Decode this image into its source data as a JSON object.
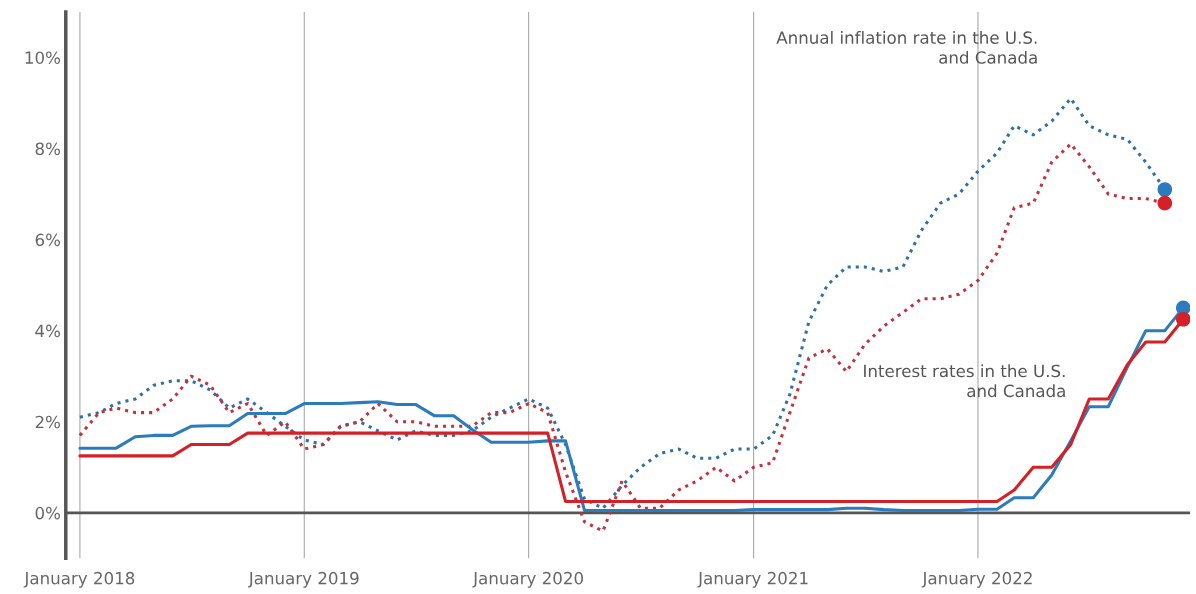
{
  "chart_data": {
    "type": "line",
    "annotations": [
      "Annual inflation rate in the U.S.\nand Canada",
      "Interest rates in the U.S.\nand Canada"
    ],
    "x": [
      "2018-01",
      "2018-02",
      "2018-03",
      "2018-04",
      "2018-05",
      "2018-06",
      "2018-07",
      "2018-08",
      "2018-09",
      "2018-10",
      "2018-11",
      "2018-12",
      "2019-01",
      "2019-02",
      "2019-03",
      "2019-04",
      "2019-05",
      "2019-06",
      "2019-07",
      "2019-08",
      "2019-09",
      "2019-10",
      "2019-11",
      "2019-12",
      "2020-01",
      "2020-02",
      "2020-03",
      "2020-04",
      "2020-05",
      "2020-06",
      "2020-07",
      "2020-08",
      "2020-09",
      "2020-10",
      "2020-11",
      "2020-12",
      "2021-01",
      "2021-02",
      "2021-03",
      "2021-04",
      "2021-05",
      "2021-06",
      "2021-07",
      "2021-08",
      "2021-09",
      "2021-10",
      "2021-11",
      "2021-12",
      "2022-01",
      "2022-02",
      "2022-03",
      "2022-04",
      "2022-05",
      "2022-06",
      "2022-07",
      "2022-08",
      "2022-09",
      "2022-10",
      "2022-11",
      "2022-12"
    ],
    "series": [
      {
        "color": "#2f6fa3",
        "line_style": "dotted",
        "values": [
          2.1,
          2.2,
          2.4,
          2.5,
          2.8,
          2.9,
          2.9,
          2.7,
          2.3,
          2.5,
          2.2,
          1.9,
          1.6,
          1.5,
          1.9,
          2.0,
          1.8,
          1.6,
          1.8,
          1.7,
          1.7,
          1.8,
          2.1,
          2.3,
          2.5,
          2.3,
          1.5,
          0.3,
          0.1,
          0.6,
          1.0,
          1.3,
          1.4,
          1.2,
          1.2,
          1.4,
          1.4,
          1.7,
          2.6,
          4.2,
          5.0,
          5.4,
          5.4,
          5.3,
          5.4,
          6.2,
          6.8,
          7.0,
          7.5,
          7.9,
          8.5,
          8.3,
          8.6,
          9.1,
          8.5,
          8.3,
          8.2,
          7.7,
          7.1,
          null
        ]
      },
      {
        "color": "#c0323c",
        "line_style": "dotted",
        "values": [
          1.7,
          2.2,
          2.3,
          2.2,
          2.2,
          2.5,
          3.0,
          2.8,
          2.2,
          2.4,
          1.7,
          2.0,
          1.4,
          1.5,
          1.9,
          2.0,
          2.4,
          2.0,
          2.0,
          1.9,
          1.9,
          1.9,
          2.2,
          2.2,
          2.4,
          2.2,
          0.9,
          -0.2,
          -0.4,
          0.7,
          0.1,
          0.1,
          0.5,
          0.7,
          1.0,
          0.7,
          1.0,
          1.1,
          2.2,
          3.4,
          3.6,
          3.1,
          3.7,
          4.1,
          4.4,
          4.7,
          4.7,
          4.8,
          5.1,
          5.7,
          6.7,
          6.8,
          7.7,
          8.1,
          7.6,
          7.0,
          6.9,
          6.9,
          6.8,
          null
        ]
      },
      {
        "color": "#2b7bbd",
        "line_style": "solid",
        "values": [
          1.42,
          1.42,
          1.42,
          1.67,
          1.7,
          1.7,
          1.9,
          1.91,
          1.91,
          2.18,
          2.18,
          2.18,
          2.4,
          2.4,
          2.4,
          2.42,
          2.44,
          2.38,
          2.38,
          2.13,
          2.13,
          1.83,
          1.55,
          1.55,
          1.55,
          1.58,
          1.58,
          0.05,
          0.05,
          0.05,
          0.05,
          0.05,
          0.05,
          0.05,
          0.05,
          0.05,
          0.07,
          0.07,
          0.07,
          0.07,
          0.07,
          0.1,
          0.1,
          0.07,
          0.05,
          0.05,
          0.05,
          0.05,
          0.08,
          0.08,
          0.33,
          0.33,
          0.83,
          1.58,
          2.33,
          2.33,
          3.2,
          4.0,
          4.0,
          4.5
        ]
      },
      {
        "color": "#d42026",
        "line_style": "solid",
        "values": [
          1.25,
          1.25,
          1.25,
          1.25,
          1.25,
          1.25,
          1.5,
          1.5,
          1.5,
          1.75,
          1.75,
          1.75,
          1.75,
          1.75,
          1.75,
          1.75,
          1.75,
          1.75,
          1.75,
          1.75,
          1.75,
          1.75,
          1.75,
          1.75,
          1.75,
          1.75,
          0.25,
          0.25,
          0.25,
          0.25,
          0.25,
          0.25,
          0.25,
          0.25,
          0.25,
          0.25,
          0.25,
          0.25,
          0.25,
          0.25,
          0.25,
          0.25,
          0.25,
          0.25,
          0.25,
          0.25,
          0.25,
          0.25,
          0.25,
          0.25,
          0.5,
          1.0,
          1.0,
          1.5,
          2.5,
          2.5,
          3.25,
          3.75,
          3.75,
          4.25
        ]
      },
      {
        "type": "scatter",
        "color": "#2b7bbd",
        "x": [
          "2022-11"
        ],
        "values": [
          7.1
        ]
      },
      {
        "type": "scatter",
        "color": "#d42026",
        "x": [
          "2022-11"
        ],
        "values": [
          6.8
        ]
      },
      {
        "type": "scatter",
        "color": "#2b7bbd",
        "x": [
          "2022-12"
        ],
        "values": [
          4.5
        ]
      },
      {
        "type": "scatter",
        "color": "#d42026",
        "x": [
          "2022-12"
        ],
        "values": [
          4.25
        ]
      }
    ],
    "xlim": [
      "2017-12-09",
      "2022-12-12"
    ],
    "xticks": [
      {
        "value": "2018-01",
        "label": "January 2018"
      },
      {
        "value": "2019-01",
        "label": "January 2019"
      },
      {
        "value": "2020-01",
        "label": "January 2020"
      },
      {
        "value": "2021-01",
        "label": "January 2021"
      },
      {
        "value": "2022-01",
        "label": "January 2022"
      }
    ],
    "ylim": [
      -1,
      11
    ],
    "yticks": [
      {
        "value": 0,
        "label": "0%"
      },
      {
        "value": 2,
        "label": "2%"
      },
      {
        "value": 4,
        "label": "4%"
      },
      {
        "value": 6,
        "label": "6%"
      },
      {
        "value": 8,
        "label": "8%"
      },
      {
        "value": 10,
        "label": "10%"
      }
    ],
    "ref_lines": [
      {
        "axis": "y",
        "value": 0,
        "color": "#555555"
      }
    ],
    "grid": "x",
    "legend": false
  }
}
